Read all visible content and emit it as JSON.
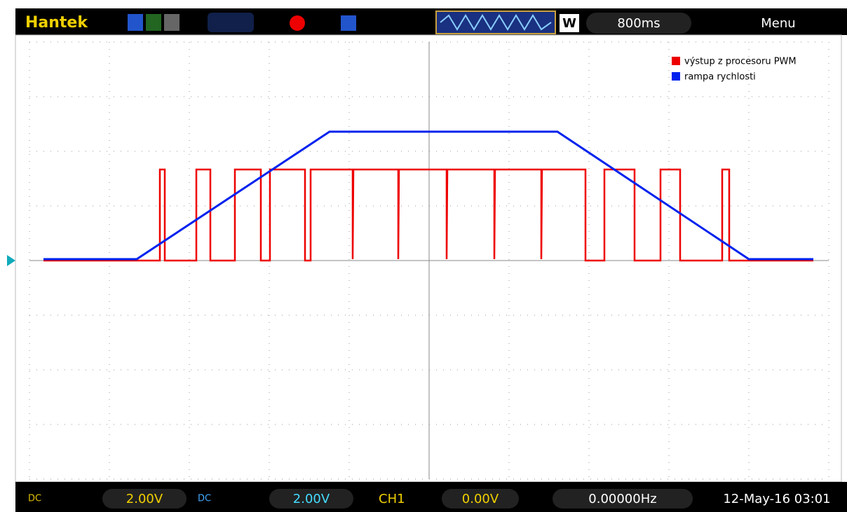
{
  "toolbar": {
    "brand": "Hantek",
    "wave_mode": "W",
    "timebase": "800ms",
    "menu": "Menu"
  },
  "legend": [
    "výstup z procesoru PWM",
    "rampa rychlosti"
  ],
  "status": {
    "ch1_coupling": "DC",
    "ch1_volts": "2.00V",
    "ch2_coupling": "DC",
    "ch2_volts": "2.00V",
    "trigger_source": "CH1",
    "trigger_level": "0.00V",
    "frequency": "0.00000Hz",
    "datetime": "12-May-16 03:01"
  }
}
